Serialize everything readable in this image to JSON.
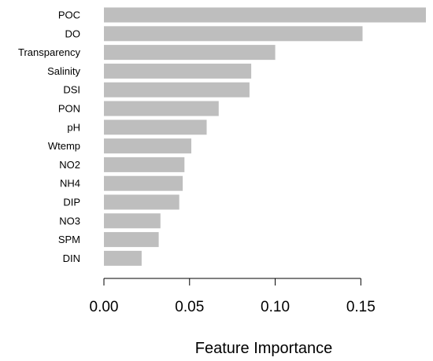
{
  "chart_data": {
    "type": "bar",
    "orientation": "horizontal",
    "categories": [
      "POC",
      "DO",
      "Transparency",
      "Salinity",
      "DSI",
      "PON",
      "pH",
      "Wtemp",
      "NO2",
      "NH4",
      "DIP",
      "NO3",
      "SPM",
      "DIN"
    ],
    "values": [
      0.188,
      0.151,
      0.1,
      0.086,
      0.085,
      0.067,
      0.06,
      0.051,
      0.047,
      0.046,
      0.044,
      0.033,
      0.032,
      0.022
    ],
    "xlabel": "Feature Importance",
    "ylabel": "",
    "title": "",
    "xlim": [
      0,
      0.188
    ],
    "xticks": [
      0.0,
      0.05,
      0.1,
      0.15
    ],
    "xtick_labels": [
      "0.00",
      "0.05",
      "0.10",
      "0.15"
    ],
    "grid": false,
    "legend": "none",
    "bar_color": "#bebebe",
    "axis_color": "#000000"
  }
}
